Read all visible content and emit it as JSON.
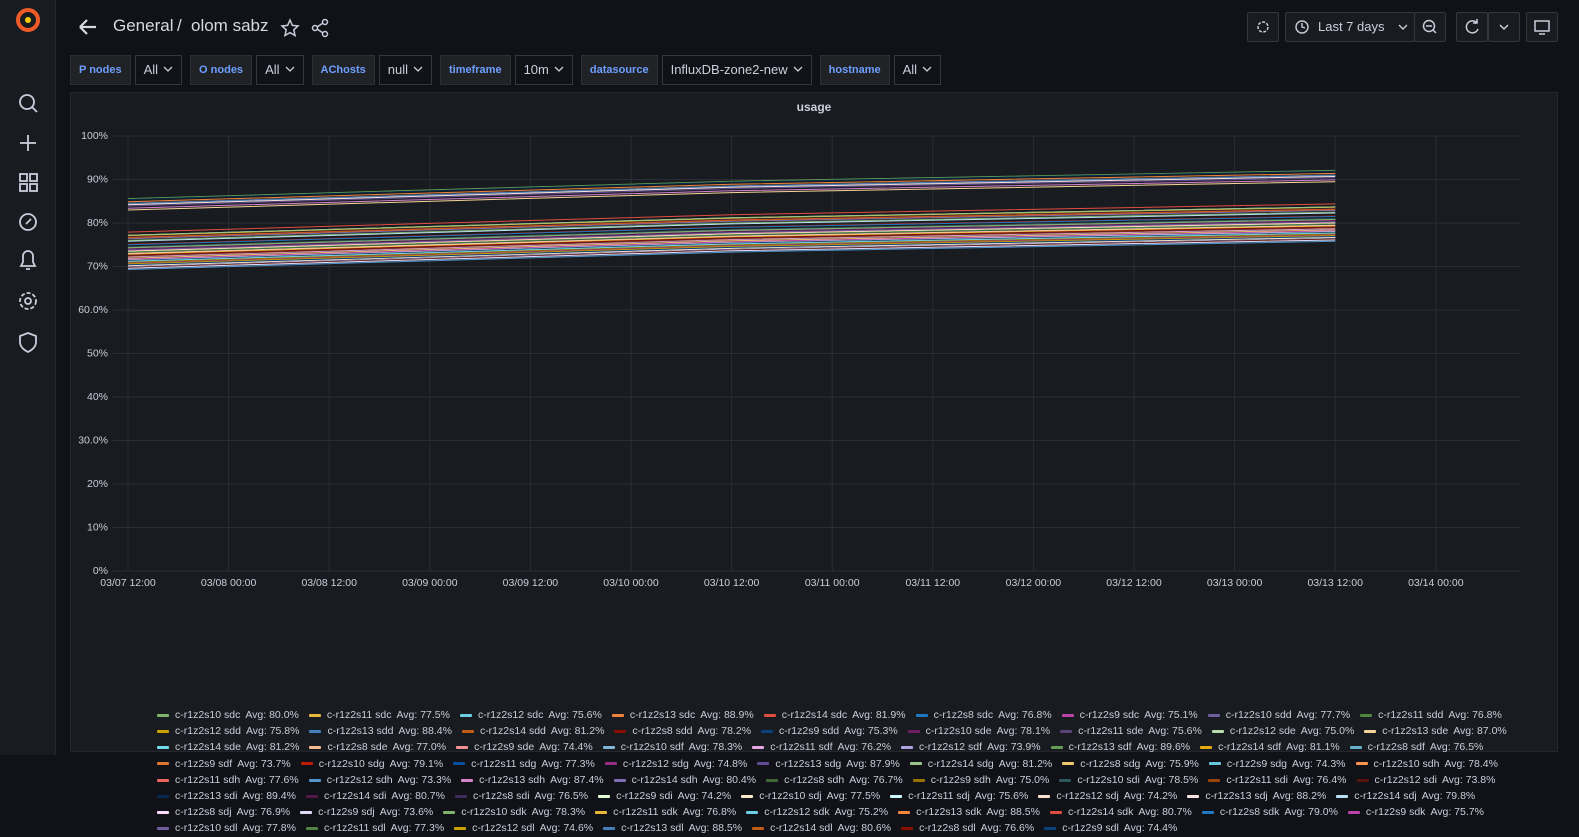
{
  "header": {
    "folder": "General",
    "separator": "/",
    "dashboard": "olom sabz",
    "time_range": "Last 7 days"
  },
  "variables": [
    {
      "label": "P nodes",
      "value": "All"
    },
    {
      "label": "O nodes",
      "value": "All"
    },
    {
      "label": "AChosts",
      "value": "null"
    },
    {
      "label": "timeframe",
      "value": "10m"
    },
    {
      "label": "datasource",
      "value": "InfluxDB-zone2-new"
    },
    {
      "label": "hostname",
      "value": "All"
    }
  ],
  "chart_data": {
    "type": "line",
    "title": "usage",
    "grid": true,
    "legend_position": "bottom",
    "x": [
      "03/07 12:00",
      "03/10 12:00",
      "03/13 12:00"
    ],
    "xticks": [
      "03/07 12:00",
      "03/08 00:00",
      "03/08 12:00",
      "03/09 00:00",
      "03/09 12:00",
      "03/10 00:00",
      "03/10 12:00",
      "03/11 00:00",
      "03/11 12:00",
      "03/12 00:00",
      "03/12 12:00",
      "03/13 00:00",
      "03/13 12:00",
      "03/14 00:00"
    ],
    "ylim": [
      0,
      100
    ],
    "yticks": [
      {
        "value": 0,
        "label": "0%"
      },
      {
        "value": 10,
        "label": "10%"
      },
      {
        "value": 20,
        "label": "20%"
      },
      {
        "value": 30,
        "label": "30.0%"
      },
      {
        "value": 40,
        "label": "40%"
      },
      {
        "value": 50,
        "label": "50%"
      },
      {
        "value": 60,
        "label": "60.0%"
      },
      {
        "value": 70,
        "label": "70%"
      },
      {
        "value": 80,
        "label": "80%"
      },
      {
        "value": 90,
        "label": "90%"
      },
      {
        "value": 100,
        "label": "100%"
      }
    ],
    "series": [
      {
        "name": "c-r1z2s10 sdc",
        "color": "#7EB26D",
        "values": [
          76,
          80,
          82.5
        ],
        "avg": 80.0,
        "avg_label": "Avg: 80.0%"
      },
      {
        "name": "c-r1z2s11 sdc",
        "color": "#EAB839",
        "values": [
          73.5,
          77.5,
          80
        ],
        "avg": 77.5,
        "avg_label": "Avg: 77.5%"
      },
      {
        "name": "c-r1z2s12 sdc",
        "color": "#6ED0E0",
        "values": [
          71.6,
          75.6,
          78.1
        ],
        "avg": 75.6,
        "avg_label": "Avg: 75.6%"
      },
      {
        "name": "c-r1z2s13 sdc",
        "color": "#EF843C",
        "values": [
          84.9,
          88.9,
          91.4
        ],
        "avg": 88.9,
        "avg_label": "Avg: 88.9%"
      },
      {
        "name": "c-r1z2s14 sdc",
        "color": "#E24D42",
        "values": [
          77.9,
          81.9,
          84.4
        ],
        "avg": 81.9,
        "avg_label": "Avg: 81.9%"
      },
      {
        "name": "c-r1z2s8 sdc",
        "color": "#1F78C1",
        "values": [
          72.8,
          76.8,
          79.3
        ],
        "avg": 76.8,
        "avg_label": "Avg: 76.8%"
      },
      {
        "name": "c-r1z2s9 sdc",
        "color": "#BA43A9",
        "values": [
          71.1,
          75.1,
          77.6
        ],
        "avg": 75.1,
        "avg_label": "Avg: 75.1%"
      },
      {
        "name": "c-r1z2s10 sdd",
        "color": "#705DA0",
        "values": [
          73.7,
          77.7,
          80.2
        ],
        "avg": 77.7,
        "avg_label": "Avg: 77.7%"
      },
      {
        "name": "c-r1z2s11 sdd",
        "color": "#508642",
        "values": [
          72.8,
          76.8,
          79.3
        ],
        "avg": 76.8,
        "avg_label": "Avg: 76.8%"
      },
      {
        "name": "c-r1z2s12 sdd",
        "color": "#CCA300",
        "values": [
          71.8,
          75.8,
          78.3
        ],
        "avg": 75.8,
        "avg_label": "Avg: 75.8%"
      },
      {
        "name": "c-r1z2s13 sdd",
        "color": "#447EBC",
        "values": [
          84.4,
          88.4,
          90.9
        ],
        "avg": 88.4,
        "avg_label": "Avg: 88.4%"
      },
      {
        "name": "c-r1z2s14 sdd",
        "color": "#C15C17",
        "values": [
          77.2,
          81.2,
          83.7
        ],
        "avg": 81.2,
        "avg_label": "Avg: 81.2%"
      },
      {
        "name": "c-r1z2s8 sdd",
        "color": "#890F02",
        "values": [
          74.2,
          78.2,
          80.7
        ],
        "avg": 78.2,
        "avg_label": "Avg: 78.2%"
      },
      {
        "name": "c-r1z2s9 sdd",
        "color": "#0A437C",
        "values": [
          71.3,
          75.3,
          77.8
        ],
        "avg": 75.3,
        "avg_label": "Avg: 75.3%"
      },
      {
        "name": "c-r1z2s10 sde",
        "color": "#6D1F62",
        "values": [
          74.1,
          78.1,
          80.6
        ],
        "avg": 78.1,
        "avg_label": "Avg: 78.1%"
      },
      {
        "name": "c-r1z2s11 sde",
        "color": "#584477",
        "values": [
          71.6,
          75.6,
          78.1
        ],
        "avg": 75.6,
        "avg_label": "Avg: 75.6%"
      },
      {
        "name": "c-r1z2s12 sde",
        "color": "#B7DBAB",
        "values": [
          71,
          75,
          77.5
        ],
        "avg": 75.0,
        "avg_label": "Avg: 75.0%"
      },
      {
        "name": "c-r1z2s13 sde",
        "color": "#F4D598",
        "values": [
          83,
          87,
          89.5
        ],
        "avg": 87.0,
        "avg_label": "Avg: 87.0%"
      },
      {
        "name": "c-r1z2s14 sde",
        "color": "#70DBED",
        "values": [
          77.2,
          81.2,
          83.7
        ],
        "avg": 81.2,
        "avg_label": "Avg: 81.2%"
      },
      {
        "name": "c-r1z2s8 sde",
        "color": "#F9BA8F",
        "values": [
          73,
          77,
          79.5
        ],
        "avg": 77.0,
        "avg_label": "Avg: 77.0%"
      },
      {
        "name": "c-r1z2s9 sde",
        "color": "#F29191",
        "values": [
          70.4,
          74.4,
          76.9
        ],
        "avg": 74.4,
        "avg_label": "Avg: 74.4%"
      },
      {
        "name": "c-r1z2s10 sdf",
        "color": "#82B5D8",
        "values": [
          74.3,
          78.3,
          80.8
        ],
        "avg": 78.3,
        "avg_label": "Avg: 78.3%"
      },
      {
        "name": "c-r1z2s11 sdf",
        "color": "#E5A8E2",
        "values": [
          72.2,
          76.2,
          78.7
        ],
        "avg": 76.2,
        "avg_label": "Avg: 76.2%"
      },
      {
        "name": "c-r1z2s12 sdf",
        "color": "#AEA2E0",
        "values": [
          69.9,
          73.9,
          76.4
        ],
        "avg": 73.9,
        "avg_label": "Avg: 73.9%"
      },
      {
        "name": "c-r1z2s13 sdf",
        "color": "#629E51",
        "values": [
          85.6,
          89.6,
          92.1
        ],
        "avg": 89.6,
        "avg_label": "Avg: 89.6%"
      },
      {
        "name": "c-r1z2s14 sdf",
        "color": "#E5AC0E",
        "values": [
          77.1,
          81.1,
          83.6
        ],
        "avg": 81.1,
        "avg_label": "Avg: 81.1%"
      },
      {
        "name": "c-r1z2s8 sdf",
        "color": "#64B0C8",
        "values": [
          72.5,
          76.5,
          79
        ],
        "avg": 76.5,
        "avg_label": "Avg: 76.5%"
      },
      {
        "name": "c-r1z2s9 sdf",
        "color": "#E0752D",
        "values": [
          69.7,
          73.7,
          76.2
        ],
        "avg": 73.7,
        "avg_label": "Avg: 73.7%"
      },
      {
        "name": "c-r1z2s10 sdg",
        "color": "#BF1B00",
        "values": [
          75.1,
          79.1,
          81.6
        ],
        "avg": 79.1,
        "avg_label": "Avg: 79.1%"
      },
      {
        "name": "c-r1z2s11 sdg",
        "color": "#0A50A1",
        "values": [
          73.3,
          77.3,
          79.8
        ],
        "avg": 77.3,
        "avg_label": "Avg: 77.3%"
      },
      {
        "name": "c-r1z2s12 sdg",
        "color": "#962D82",
        "values": [
          70.8,
          74.8,
          77.3
        ],
        "avg": 74.8,
        "avg_label": "Avg: 74.8%"
      },
      {
        "name": "c-r1z2s13 sdg",
        "color": "#614D93",
        "values": [
          83.9,
          87.9,
          90.4
        ],
        "avg": 87.9,
        "avg_label": "Avg: 87.9%"
      },
      {
        "name": "c-r1z2s14 sdg",
        "color": "#9AC48A",
        "values": [
          77.2,
          81.2,
          83.7
        ],
        "avg": 81.2,
        "avg_label": "Avg: 81.2%"
      },
      {
        "name": "c-r1z2s8 sdg",
        "color": "#F2C96D",
        "values": [
          71.9,
          75.9,
          78.4
        ],
        "avg": 75.9,
        "avg_label": "Avg: 75.9%"
      },
      {
        "name": "c-r1z2s9 sdg",
        "color": "#65C5DB",
        "values": [
          70.3,
          74.3,
          76.8
        ],
        "avg": 74.3,
        "avg_label": "Avg: 74.3%"
      },
      {
        "name": "c-r1z2s10 sdh",
        "color": "#F9934E",
        "values": [
          74.4,
          78.4,
          80.9
        ],
        "avg": 78.4,
        "avg_label": "Avg: 78.4%"
      },
      {
        "name": "c-r1z2s11 sdh",
        "color": "#EA6460",
        "values": [
          73.6,
          77.6,
          80.1
        ],
        "avg": 77.6,
        "avg_label": "Avg: 77.6%"
      },
      {
        "name": "c-r1z2s12 sdh",
        "color": "#5195CE",
        "values": [
          69.3,
          73.3,
          75.8
        ],
        "avg": 73.3,
        "avg_label": "Avg: 73.3%"
      },
      {
        "name": "c-r1z2s13 sdh",
        "color": "#D683CE",
        "values": [
          83.4,
          87.4,
          89.9
        ],
        "avg": 87.4,
        "avg_label": "Avg: 87.4%"
      },
      {
        "name": "c-r1z2s14 sdh",
        "color": "#806EB7",
        "values": [
          76.4,
          80.4,
          82.9
        ],
        "avg": 80.4,
        "avg_label": "Avg: 80.4%"
      },
      {
        "name": "c-r1z2s8 sdh",
        "color": "#3F6833",
        "values": [
          72.7,
          76.7,
          79.2
        ],
        "avg": 76.7,
        "avg_label": "Avg: 76.7%"
      },
      {
        "name": "c-r1z2s9 sdh",
        "color": "#967302",
        "values": [
          71,
          75,
          77.5
        ],
        "avg": 75.0,
        "avg_label": "Avg: 75.0%"
      },
      {
        "name": "c-r1z2s10 sdi",
        "color": "#2F575E",
        "values": [
          74.5,
          78.5,
          81
        ],
        "avg": 78.5,
        "avg_label": "Avg: 78.5%"
      },
      {
        "name": "c-r1z2s11 sdi",
        "color": "#99440A",
        "values": [
          72.4,
          76.4,
          78.9
        ],
        "avg": 76.4,
        "avg_label": "Avg: 76.4%"
      },
      {
        "name": "c-r1z2s12 sdi",
        "color": "#58140C",
        "values": [
          69.8,
          73.8,
          76.3
        ],
        "avg": 73.8,
        "avg_label": "Avg: 73.8%"
      },
      {
        "name": "c-r1z2s13 sdi",
        "color": "#052B51",
        "values": [
          85.4,
          89.4,
          91.9
        ],
        "avg": 89.4,
        "avg_label": "Avg: 89.4%"
      },
      {
        "name": "c-r1z2s14 sdi",
        "color": "#511749",
        "values": [
          76.7,
          80.7,
          83.2
        ],
        "avg": 80.7,
        "avg_label": "Avg: 80.7%"
      },
      {
        "name": "c-r1z2s8 sdi",
        "color": "#3F2B5B",
        "values": [
          72.5,
          76.5,
          79
        ],
        "avg": 76.5,
        "avg_label": "Avg: 76.5%"
      },
      {
        "name": "c-r1z2s9 sdi",
        "color": "#E0F9D7",
        "values": [
          70.2,
          74.2,
          76.7
        ],
        "avg": 74.2,
        "avg_label": "Avg: 74.2%"
      },
      {
        "name": "c-r1z2s10 sdj",
        "color": "#FCEACA",
        "values": [
          73.5,
          77.5,
          80
        ],
        "avg": 77.5,
        "avg_label": "Avg: 77.5%"
      },
      {
        "name": "c-r1z2s11 sdj",
        "color": "#CFFAFF",
        "values": [
          71.6,
          75.6,
          78.1
        ],
        "avg": 75.6,
        "avg_label": "Avg: 75.6%"
      },
      {
        "name": "c-r1z2s12 sdj",
        "color": "#F9E2D2",
        "values": [
          70.2,
          74.2,
          76.7
        ],
        "avg": 74.2,
        "avg_label": "Avg: 74.2%"
      },
      {
        "name": "c-r1z2s13 sdj",
        "color": "#FCE2DE",
        "values": [
          84.2,
          88.2,
          90.7
        ],
        "avg": 88.2,
        "avg_label": "Avg: 88.2%"
      },
      {
        "name": "c-r1z2s14 sdj",
        "color": "#BADFF4",
        "values": [
          75.8,
          79.8,
          82.3
        ],
        "avg": 79.8,
        "avg_label": "Avg: 79.8%"
      },
      {
        "name": "c-r1z2s8 sdj",
        "color": "#F9D9F9",
        "values": [
          72.9,
          76.9,
          79.4
        ],
        "avg": 76.9,
        "avg_label": "Avg: 76.9%"
      },
      {
        "name": "c-r1z2s9 sdj",
        "color": "#DEDAF7",
        "values": [
          69.6,
          73.6,
          76.1
        ],
        "avg": 73.6,
        "avg_label": "Avg: 73.6%"
      },
      {
        "name": "c-r1z2s10 sdk",
        "color": "#7EB26D",
        "values": [
          74.3,
          78.3,
          80.8
        ],
        "avg": 78.3,
        "avg_label": "Avg: 78.3%"
      },
      {
        "name": "c-r1z2s11 sdk",
        "color": "#EAB839",
        "values": [
          72.8,
          76.8,
          79.3
        ],
        "avg": 76.8,
        "avg_label": "Avg: 76.8%"
      },
      {
        "name": "c-r1z2s12 sdk",
        "color": "#6ED0E0",
        "values": [
          71.2,
          75.2,
          77.7
        ],
        "avg": 75.2,
        "avg_label": "Avg: 75.2%"
      },
      {
        "name": "c-r1z2s13 sdk",
        "color": "#EF843C",
        "values": [
          84.5,
          88.5,
          91
        ],
        "avg": 88.5,
        "avg_label": "Avg: 88.5%"
      },
      {
        "name": "c-r1z2s14 sdk",
        "color": "#E24D42",
        "values": [
          76.7,
          80.7,
          83.2
        ],
        "avg": 80.7,
        "avg_label": "Avg: 80.7%"
      },
      {
        "name": "c-r1z2s8 sdk",
        "color": "#1F78C1",
        "values": [
          75,
          79,
          81.5
        ],
        "avg": 79.0,
        "avg_label": "Avg: 79.0%"
      },
      {
        "name": "c-r1z2s9 sdk",
        "color": "#BA43A9",
        "values": [
          71.7,
          75.7,
          78.2
        ],
        "avg": 75.7,
        "avg_label": "Avg: 75.7%"
      },
      {
        "name": "c-r1z2s10 sdl",
        "color": "#705DA0",
        "values": [
          73.8,
          77.8,
          80.3
        ],
        "avg": 77.8,
        "avg_label": "Avg: 77.8%"
      },
      {
        "name": "c-r1z2s11 sdl",
        "color": "#508642",
        "values": [
          73.3,
          77.3,
          79.8
        ],
        "avg": 77.3,
        "avg_label": "Avg: 77.3%"
      },
      {
        "name": "c-r1z2s12 sdl",
        "color": "#CCA300",
        "values": [
          70.6,
          74.6,
          77.1
        ],
        "avg": 74.6,
        "avg_label": "Avg: 74.6%"
      },
      {
        "name": "c-r1z2s13 sdl",
        "color": "#447EBC",
        "values": [
          84.5,
          88.5,
          91
        ],
        "avg": 88.5,
        "avg_label": "Avg: 88.5%"
      },
      {
        "name": "c-r1z2s14 sdl",
        "color": "#C15C17",
        "values": [
          76.6,
          80.6,
          83.1
        ],
        "avg": 80.6,
        "avg_label": "Avg: 80.6%"
      },
      {
        "name": "c-r1z2s8 sdl",
        "color": "#890F02",
        "values": [
          72.6,
          76.6,
          79.1
        ],
        "avg": 76.6,
        "avg_label": "Avg: 76.6%"
      },
      {
        "name": "c-r1z2s9 sdl",
        "color": "#0A437C",
        "values": [
          70.4,
          74.4,
          76.9
        ],
        "avg": 74.4,
        "avg_label": "Avg: 74.4%"
      }
    ]
  }
}
